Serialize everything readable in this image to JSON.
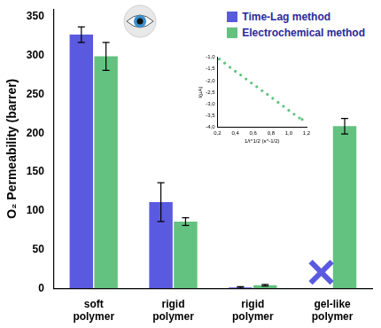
{
  "chart_data": [
    {
      "type": "bar",
      "categories": [
        "soft polymer",
        "rigid polymer",
        "rigid polymer",
        "gel-like polymer"
      ],
      "y_label": "O₂ Permeability (barrer)",
      "series": [
        {
          "name": "Time-Lag method",
          "color": "#5a5ae0",
          "values": [
            327,
            111,
            1,
            null
          ],
          "errors": [
            10,
            25,
            1,
            null
          ]
        },
        {
          "name": "Electrochemical method",
          "color": "#63c27f",
          "values": [
            299,
            86,
            4,
            209
          ],
          "errors": [
            18,
            5,
            1,
            10
          ]
        }
      ],
      "ylim": [
        0,
        360
      ],
      "yticks": [
        0,
        50,
        100,
        150,
        200,
        250,
        300,
        350
      ],
      "grid": false,
      "legend": "upper right"
    },
    {
      "type": "scatter",
      "x_label": "1/t^1/2 (s^-1/2)",
      "y_label": "I(µA)",
      "x": [
        0.22,
        0.28,
        0.34,
        0.4,
        0.46,
        0.52,
        0.58,
        0.64,
        0.7,
        0.76,
        0.82,
        0.88,
        0.94,
        1.0,
        1.06,
        1.12,
        1.15
      ],
      "values": [
        -1.08,
        -1.25,
        -1.43,
        -1.6,
        -1.76,
        -1.93,
        -2.1,
        -2.26,
        -2.43,
        -2.59,
        -2.76,
        -2.93,
        -3.1,
        -3.27,
        -3.44,
        -3.6,
        -3.66
      ],
      "color": "#63c27f",
      "marker": "circle",
      "xlim": [
        0.2,
        1.2
      ],
      "xticks": [
        {
          "value": 0.2,
          "label": "0,2"
        },
        {
          "value": 0.4,
          "label": "0,4"
        },
        {
          "value": 0.6,
          "label": "0,6"
        },
        {
          "value": 0.8,
          "label": "0,8"
        },
        {
          "value": 1.0,
          "label": "1,0"
        },
        {
          "value": 1.2,
          "label": "1,2"
        }
      ],
      "ylim": [
        -4,
        -1
      ],
      "yticks": [
        {
          "value": -4,
          "label": "-4,0"
        },
        {
          "value": -3.5,
          "label": "-3,5"
        },
        {
          "value": -3,
          "label": "-3,0"
        },
        {
          "value": -2.5,
          "label": "-2,5"
        },
        {
          "value": -2,
          "label": "-2,0"
        },
        {
          "value": -1.5,
          "label": "-1,5"
        },
        {
          "value": -1,
          "label": "-1,0"
        }
      ],
      "grid": false
    }
  ]
}
